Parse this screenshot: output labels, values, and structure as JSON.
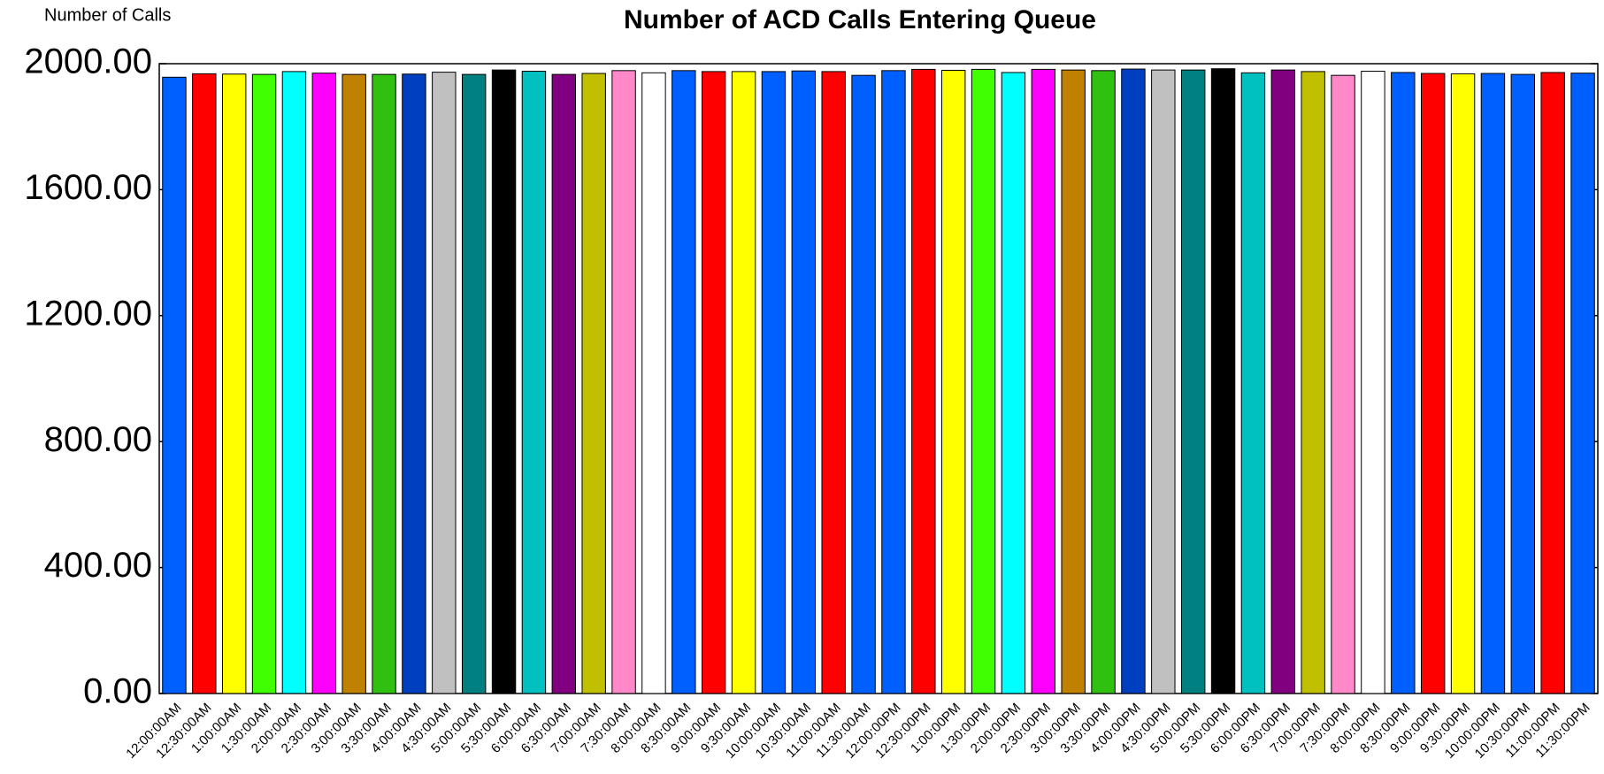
{
  "chart_data": {
    "type": "bar",
    "title": "Number of ACD Calls Entering Queue",
    "y_label": "Number of Calls",
    "categories": [
      "12:00:00AM",
      "12:30:00AM",
      "1:00:00AM",
      "1:30:00AM",
      "2:00:00AM",
      "2:30:00AM",
      "3:00:00AM",
      "3:30:00AM",
      "4:00:00AM",
      "4:30:00AM",
      "5:00:00AM",
      "5:30:00AM",
      "6:00:00AM",
      "6:30:00AM",
      "7:00:00AM",
      "7:30:00AM",
      "8:00:00AM",
      "8:30:00AM",
      "9:00:00AM",
      "9:30:00AM",
      "10:00:00AM",
      "10:30:00AM",
      "11:00:00AM",
      "11:30:00AM",
      "12:00:00PM",
      "12:30:00PM",
      "1:00:00PM",
      "1:30:00PM",
      "2:00:00PM",
      "2:30:00PM",
      "3:00:00PM",
      "3:30:00PM",
      "4:00:00PM",
      "4:30:00PM",
      "5:00:00PM",
      "5:30:00PM",
      "6:00:00PM",
      "6:30:00PM",
      "7:00:00PM",
      "7:30:00PM",
      "8:00:00PM",
      "8:30:00PM",
      "9:00:00PM",
      "9:30:00PM",
      "10:00:00PM",
      "10:30:00PM",
      "11:00:00PM",
      "11:30:00PM"
    ],
    "values": [
      1957,
      1968,
      1967,
      1966,
      1975,
      1970,
      1966,
      1966,
      1967,
      1973,
      1966,
      1980,
      1976,
      1966,
      1969,
      1978,
      1971,
      1978,
      1975,
      1975,
      1975,
      1977,
      1975,
      1963,
      1978,
      1982,
      1979,
      1982,
      1972,
      1982,
      1980,
      1978,
      1983,
      1980,
      1980,
      1984,
      1971,
      1980,
      1975,
      1963,
      1976,
      1972,
      1969,
      1968,
      1969,
      1966,
      1972,
      1970
    ],
    "colors": [
      "#0060ff",
      "#ff0000",
      "#ffff00",
      "#40ff00",
      "#00ffff",
      "#ff00ff",
      "#c08000",
      "#30c010",
      "#0040c0",
      "#c0c0c0",
      "#008080",
      "#000000",
      "#00c0c0",
      "#800080",
      "#c0c000",
      "#ff88c8",
      "#ffffff",
      "#0060ff",
      "#ff0000",
      "#ffff00",
      "#0060ff",
      "#0060ff",
      "#ff0000",
      "#0060ff",
      "#0060ff",
      "#ff0000",
      "#ffff00",
      "#40ff00",
      "#00ffff",
      "#ff00ff",
      "#c08000",
      "#30c010",
      "#0040c0",
      "#c0c0c0",
      "#008080",
      "#000000",
      "#00c0c0",
      "#800080",
      "#c0c000",
      "#ff88c8",
      "#ffffff",
      "#0060ff",
      "#ff0000",
      "#ffff00",
      "#0060ff",
      "#0060ff",
      "#ff0000",
      "#0060ff"
    ],
    "ylim": [
      0,
      2000
    ],
    "yticks": [
      {
        "value": 0,
        "label": "0.00"
      },
      {
        "value": 400,
        "label": "400.00"
      },
      {
        "value": 800,
        "label": "800.00"
      },
      {
        "value": 1200,
        "label": "1200.00"
      },
      {
        "value": 1600,
        "label": "1600.00"
      },
      {
        "value": 2000,
        "label": "2000.00"
      }
    ],
    "grid": false
  }
}
